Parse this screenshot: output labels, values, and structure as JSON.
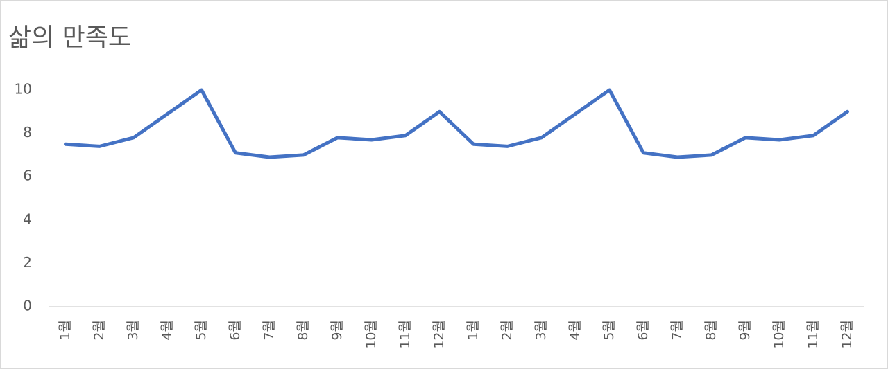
{
  "chart_data": {
    "type": "line",
    "title": "삶의 만족도",
    "categories": [
      "1월",
      "2월",
      "3월",
      "4월",
      "5월",
      "6월",
      "7월",
      "8월",
      "9월",
      "10월",
      "11월",
      "12월",
      "1월",
      "2월",
      "3월",
      "4월",
      "5월",
      "6월",
      "7월",
      "8월",
      "9월",
      "10월",
      "11월",
      "12월"
    ],
    "values": [
      7.5,
      7.4,
      7.8,
      8.9,
      10,
      7.1,
      6.9,
      7.0,
      7.8,
      7.7,
      7.9,
      9.0,
      7.5,
      7.4,
      7.8,
      8.9,
      10,
      7.1,
      6.9,
      7.0,
      7.8,
      7.7,
      7.9,
      9.0
    ],
    "color": "#4472c4",
    "ylim": [
      0,
      10
    ],
    "yticks": [
      0,
      2,
      4,
      6,
      8,
      10
    ],
    "grid": false
  }
}
